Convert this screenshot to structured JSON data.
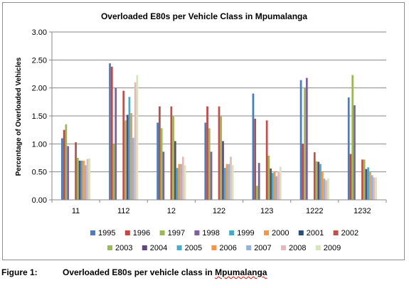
{
  "caption": {
    "label": "Figure 1:",
    "text_main": "Overloaded E80s per vehicle class in ",
    "text_flagged": "Mpumalanga"
  },
  "chart_data": {
    "type": "bar",
    "title": "Overloaded E80s per Vehicle Class in Mpumalanga",
    "xlabel": "",
    "ylabel": "Percentage of Overloaded Vehicles",
    "ylim": [
      0,
      3
    ],
    "yticks": [
      "0.00",
      "0.50",
      "1.00",
      "1.50",
      "2.00",
      "2.50",
      "3.00"
    ],
    "grid": true,
    "legend_position": "bottom",
    "categories": [
      "11",
      "112",
      "12",
      "122",
      "123",
      "1222",
      "1232"
    ],
    "series": [
      {
        "name": "1995",
        "color": "#4a7ebb",
        "values": [
          1.1,
          2.44,
          1.38,
          1.38,
          1.9,
          2.14,
          1.83
        ]
      },
      {
        "name": "1996",
        "color": "#be4b48",
        "values": [
          1.25,
          2.38,
          1.67,
          1.67,
          1.45,
          1.0,
          0.82
        ]
      },
      {
        "name": "1997",
        "color": "#98b954",
        "values": [
          1.35,
          1.0,
          1.28,
          1.28,
          0.25,
          2.0,
          2.23
        ]
      },
      {
        "name": "1998",
        "color": "#7d60a0",
        "values": [
          0.96,
          2.0,
          0.86,
          0.86,
          0.66,
          2.18,
          1.69
        ]
      },
      {
        "name": "1999",
        "color": "#46aac5",
        "values": [
          0,
          0,
          0,
          0,
          0,
          0,
          0
        ]
      },
      {
        "name": "2000",
        "color": "#f79646",
        "values": [
          0,
          0,
          0,
          0,
          0,
          0,
          0
        ]
      },
      {
        "name": "2001",
        "color": "#2c4d75",
        "values": [
          0,
          0,
          0,
          0,
          0,
          0,
          0
        ]
      },
      {
        "name": "2002",
        "color": "#c0504d",
        "values": [
          1.03,
          1.95,
          1.67,
          1.67,
          1.42,
          0.85,
          0.72
        ]
      },
      {
        "name": "2003",
        "color": "#9bbb59",
        "values": [
          0.75,
          1.42,
          1.49,
          1.49,
          0.79,
          0.69,
          0.72
        ]
      },
      {
        "name": "2004",
        "color": "#604a7b",
        "values": [
          0.7,
          1.52,
          1.05,
          1.05,
          0.56,
          0.68,
          0.55
        ]
      },
      {
        "name": "2005",
        "color": "#4bacc6",
        "values": [
          0.7,
          1.84,
          0.57,
          0.57,
          0.48,
          0.64,
          0.58
        ]
      },
      {
        "name": "2006",
        "color": "#f79646",
        "values": [
          0.7,
          1.55,
          0.64,
          0.64,
          0.51,
          0.5,
          0.5
        ]
      },
      {
        "name": "2007",
        "color": "#95b3d7",
        "values": [
          0.62,
          1.11,
          0.64,
          0.64,
          0.42,
          0.38,
          0.44
        ]
      },
      {
        "name": "2008",
        "color": "#e6b9b8",
        "values": [
          0.73,
          2.1,
          0.77,
          0.77,
          0.51,
          0.35,
          0.4
        ]
      },
      {
        "name": "2009",
        "color": "#d7e4bd",
        "values": [
          0.74,
          2.23,
          0.62,
          0.62,
          0.59,
          0.38,
          0.4
        ]
      }
    ]
  }
}
